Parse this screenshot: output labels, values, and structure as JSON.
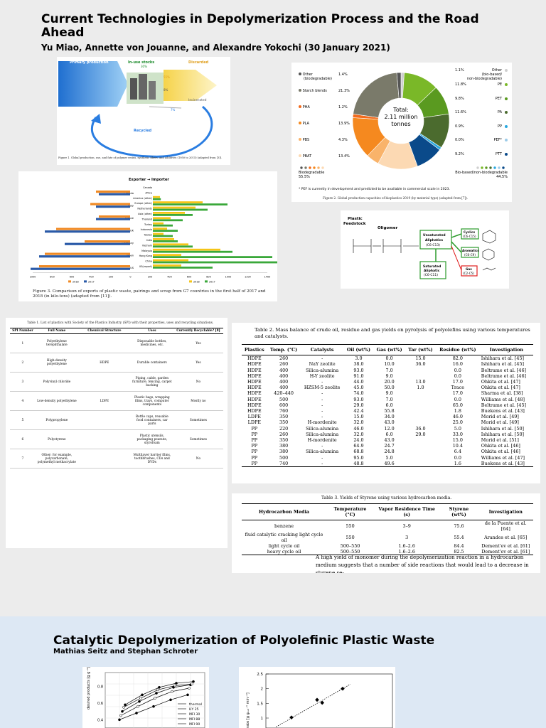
{
  "paper1": {
    "title": "Current Technologies in Depolymerization Process and the Road Ahead",
    "authors": "Yu Miao, Annette von Jouanne, and Alexandre Yokochi (30 January 2021)",
    "figure1": {
      "labels": {
        "primary": "Primary production",
        "inuse": "In-use stocks",
        "inuse_pct": "30%",
        "discarded": "Discarded",
        "discarded_pct": "55%",
        "pct8": "8%",
        "incinerated": "Incinerated",
        "pct7": "7%",
        "recycled": "Recycled"
      },
      "caption": "Figure 1. Global production, use, and fate of polymer resins, synthetic fibers, and additives (1950 to 2015) (adapted from [3])."
    },
    "figure2": {
      "center_l1": "Total:",
      "center_l2": "2.11 million",
      "center_l3": "tonnes",
      "left_legend": [
        {
          "name": "Other",
          "name2": "(biodegradable)",
          "pct": "1.4%",
          "color": "#555555"
        },
        {
          "name": "Starch blends",
          "name2": "",
          "pct": "21.3%",
          "color": "#7a7a6a"
        },
        {
          "name": "PHA",
          "name2": "",
          "pct": "1.2%",
          "color": "#f26b1d"
        },
        {
          "name": "PLA",
          "name2": "",
          "pct": "13.9%",
          "color": "#f5891f"
        },
        {
          "name": "PBS",
          "name2": "",
          "pct": "4.3%",
          "color": "#f9b36a"
        },
        {
          "name": "PBAT",
          "name2": "",
          "pct": "13.4%",
          "color": "#fcd9b3"
        }
      ],
      "right_legend": [
        {
          "pct": "1.1%",
          "name": "Other",
          "name2": "(bio-based/",
          "name3": "non-biodegradable)",
          "color": "#cfcfcf"
        },
        {
          "pct": "11.8%",
          "name": "PE",
          "name2": "",
          "name3": "",
          "color": "#7ab828"
        },
        {
          "pct": "9.8%",
          "name": "PET",
          "name2": "",
          "name3": "",
          "color": "#5a9a20"
        },
        {
          "pct": "11.6%",
          "name": "PA",
          "name2": "",
          "name3": "",
          "color": "#4b6b2e"
        },
        {
          "pct": "0.9%",
          "name": "PP",
          "name2": "",
          "name3": "",
          "color": "#29a8e0"
        },
        {
          "pct": "0.0%",
          "name": "PEF*",
          "name2": "",
          "name3": "",
          "color": "#9ccbe8"
        },
        {
          "pct": "9.2%",
          "name": "PTT",
          "name2": "",
          "name3": "",
          "color": "#0a4a8a"
        }
      ],
      "left_total_label": "Biodegradable",
      "left_total_pct": "55.5%",
      "right_total_label": "Bio-based/non-biodegradable",
      "right_total_pct": "44.5%",
      "note": "* PEF is currently in development and predicted to be available in commercial scale in 2023.",
      "caption": "Figure 2. Global production capacities of bioplastics 2019 (by material type) (adapted from [7])."
    },
    "figure3": {
      "header": "Exporter → Importer",
      "countries": [
        "Canada",
        "Italy",
        "France",
        "UK",
        "Germany",
        "Japan",
        "US"
      ],
      "importers": [
        "Canada",
        "Africa",
        "America (other)",
        "Europe (other)",
        "Netherlands",
        "Asia (other)",
        "Thailand",
        "Turkey",
        "Indonesia",
        "Taiwan",
        "India",
        "Vietnam",
        "Malaysia",
        "Hong Kong",
        "China",
        "US(export)"
      ],
      "axis_ticks": [
        "1000",
        "800",
        "600",
        "400",
        "200",
        "0",
        "200",
        "400",
        "600",
        "800",
        "1000",
        "1200",
        "1400"
      ],
      "legend_left_a": "2018",
      "legend_left_b": "2017",
      "legend_right_a": "2018",
      "legend_right_b": "2017",
      "caption": "Figure 3. Comparison of exports of plastic waste, pairings and scrap from G7 countries in the first half of 2017 and 2018 (in kilo-tons) (adapted from [11])."
    },
    "scheme": {
      "feed": "Plastic",
      "feed2": "Feedstock",
      "oligomer": "Oligomer",
      "unsat": "Unsaturated",
      "unsat2": "Aliphatics",
      "unsat3": "(C6-C13)",
      "sat": "Saturated",
      "sat2": "Aliphatic",
      "sat3": "(C6-C11)",
      "cyclics": "Cyclics",
      "cyclics2": "(C6-C15)",
      "aromatics": "Aromatics",
      "aromatics2": "(C6-C9)",
      "gas": "Gas",
      "gas2": "(C2-C5)"
    },
    "table1": {
      "caption": "Table 1. List of plastics with Society of the Plastics Industry (SPI) with their properties, uses and recycling situations.",
      "headers": [
        "SPI Number",
        "Full Name",
        "Chemical Structure",
        "Uses",
        "Currently Recyclable? [8]"
      ],
      "rows": [
        [
          "1",
          "Polyethylene terephthalate",
          "",
          "Disposable bottles, medicines, etc.",
          "Yes"
        ],
        [
          "2",
          "High-density polyethylene",
          "HDPE",
          "Durable containers",
          "Yes"
        ],
        [
          "3",
          "Polyvinyl chloride",
          "",
          "Piping, cable, garden furniture, fencing, carpet backing",
          "No"
        ],
        [
          "4",
          "Low-density polyethylene",
          "LDPE",
          "Plastic bags, wrapping films, trays, computer components",
          "Mostly no"
        ],
        [
          "5",
          "Polypropylene",
          "",
          "Bottle caps, reusable food containers, car parts",
          "Sometimes"
        ],
        [
          "6",
          "Polystyrene",
          "",
          "Plastic utensils, packaging peanuts, styrofoam",
          "Sometimes"
        ],
        [
          "7",
          "Other: for example, polycarbonate, polymethyl methacrylate",
          "",
          "Multilayer barrier films, toothbrushes, CDs and DVDs",
          "No"
        ]
      ]
    },
    "table2": {
      "caption": "Table 2. Mass balance of crude oil, residue and gas yields on pyrolysis of polyolefins using various temperatures and catalysts.",
      "headers": [
        "Plastics",
        "Temp. (°C)",
        "Catalysts",
        "Oil (wt%)",
        "Gas (wt%)",
        "Tar (wt%)",
        "Residue (wt%)",
        "Investigation"
      ],
      "rows": [
        [
          "HDPE",
          "260",
          "-",
          "3.0",
          "0.0",
          "15.0",
          "82.0",
          "Ishihara et al. [45]"
        ],
        [
          "HDPE",
          "260",
          "NaY zeolite",
          "38.0",
          "10.0",
          "36.0",
          "16.0",
          "Ishihara et al. [45]"
        ],
        [
          "HDPE",
          "400",
          "Silica-alumina",
          "93.0",
          "7.0",
          "",
          "0.0",
          "Beltrame et al. [46]"
        ],
        [
          "HDPE",
          "400",
          "H-Y zeolite",
          "91.0",
          "9.0",
          "",
          "0.0",
          "Beltrame et al. [46]"
        ],
        [
          "HDPE",
          "400",
          "-",
          "44.0",
          "20.0",
          "13.0",
          "17.0",
          "Ohkita et al. [47]"
        ],
        [
          "HDPE",
          "400",
          "HZSM-5 zeolite",
          "45.0",
          "50.0",
          "1.0",
          "Trace",
          "Ohkita et al. [47]"
        ],
        [
          "HDPE",
          "420–440",
          "-",
          "74.0",
          "9.0",
          "",
          "17.0",
          "Sharma et al. [38]"
        ],
        [
          "HDPE",
          "500",
          "-",
          "93.0",
          "7.0",
          "",
          "0.0",
          "Williams et al. [48]"
        ],
        [
          "HDPE",
          "600",
          "-",
          "29.0",
          "6.0",
          "",
          "65.0",
          "Beltrame et al. [45]"
        ],
        [
          "HDPE",
          "760",
          "-",
          "42.4",
          "55.8",
          "",
          "1.8",
          "Buekens et al. [43]"
        ],
        [
          "LDPE",
          "350",
          "-",
          "15.0",
          "34.0",
          "",
          "46.0",
          "Morid et al. [49]"
        ],
        [
          "LDPE",
          "350",
          "H-mordenite",
          "32.0",
          "43.0",
          "",
          "25.0",
          "Morid et al. [49]"
        ],
        [
          "PP",
          "220",
          "Silica-alumina",
          "46.0",
          "12.0",
          "36.0",
          "5.0",
          "Ishihara et al. [50]"
        ],
        [
          "PP",
          "260",
          "Silica-alumina",
          "32.0",
          "6.0",
          "29.0",
          "33.0",
          "Ishihara et al. [50]"
        ],
        [
          "PP",
          "350",
          "H-mordenite",
          "24.0",
          "43.0",
          "",
          "15.0",
          "Morid et al. [51]"
        ],
        [
          "PP",
          "380",
          "-",
          "64.9",
          "24.7",
          "",
          "10.4",
          "Ohkita et al. [46]"
        ],
        [
          "PP",
          "380",
          "Silica-alumina",
          "68.8",
          "24.8",
          "",
          "6.4",
          "Ohkita et al. [46]"
        ],
        [
          "PP",
          "500",
          "-",
          "95.0",
          "5.0",
          "",
          "0.0",
          "Williams et al. [47]"
        ],
        [
          "PP",
          "740",
          "-",
          "48.8",
          "49.6",
          "",
          "1.6",
          "Buekens et al. [43]"
        ]
      ]
    },
    "table3": {
      "caption": "Table 3. Yields of Styrene using various hydrocarbon media.",
      "headers": [
        "Hydrocarbon Media",
        "Temperature (°C)",
        "Vapor Residence Time (s)",
        "Styrene (wt%)",
        "Investigation"
      ],
      "rows": [
        [
          "benzene",
          "550",
          "3–9",
          "75.6",
          "de la Puente et al. [64]"
        ],
        [
          "fluid catalytic cracking light cycle oil",
          "550",
          "3",
          "55.4",
          "Arandes et al. [65]"
        ],
        [
          "light cycle oil",
          "500–550",
          "1.6–2.6",
          "84.4",
          "Dement'ev et al. [61]"
        ],
        [
          "heavy cycle oil",
          "500–550",
          "1.6–2.6",
          "82.5",
          "Dement'ev et al. [61]"
        ]
      ],
      "text": "A high yield of monomer during the depolymerization reaction in a hydrocarbon medium suggests that a number of side reactions that would lead to a decrease in styrene se-"
    }
  },
  "paper2": {
    "title": "Catalytic Depolymerization of Polyolefinic Plastic Waste",
    "authors": "Mathias Seitz and Stephan Schroter",
    "chart_data": [
      {
        "type": "line",
        "title": "",
        "ylabel": "desired products [g g⁻¹]",
        "y_ticks": [
          "0.8",
          "0.6",
          "0.4"
        ],
        "series": [
          {
            "name": "thermal",
            "values": [
              0.4,
              0.48,
              0.56,
              0.64,
              0.7
            ]
          },
          {
            "name": "HY 25",
            "values": [
              0.45,
              0.56,
              0.66,
              0.74,
              0.78
            ]
          },
          {
            "name": "MFI 30",
            "values": [
              0.5,
              0.62,
              0.72,
              0.79,
              0.82
            ]
          },
          {
            "name": "MFI 88",
            "values": [
              0.55,
              0.66,
              0.76,
              0.81,
              0.83
            ]
          },
          {
            "name": "MFI 90",
            "values": [
              0.58,
              0.7,
              0.79,
              0.84,
              0.86
            ]
          }
        ]
      },
      {
        "type": "scatter",
        "title": "",
        "ylabel": "rate [g gₑₓₜ⁻¹ min⁻¹]",
        "y_ticks": [
          "2.5",
          "2",
          "1.5",
          "1"
        ],
        "ylim": [
          0.9,
          2.5
        ],
        "points": [
          {
            "x": 1,
            "y": 1.02
          },
          {
            "x": 2,
            "y": 1.62
          },
          {
            "x": 2.2,
            "y": 1.52
          },
          {
            "x": 3,
            "y": 2.0
          }
        ]
      }
    ]
  }
}
